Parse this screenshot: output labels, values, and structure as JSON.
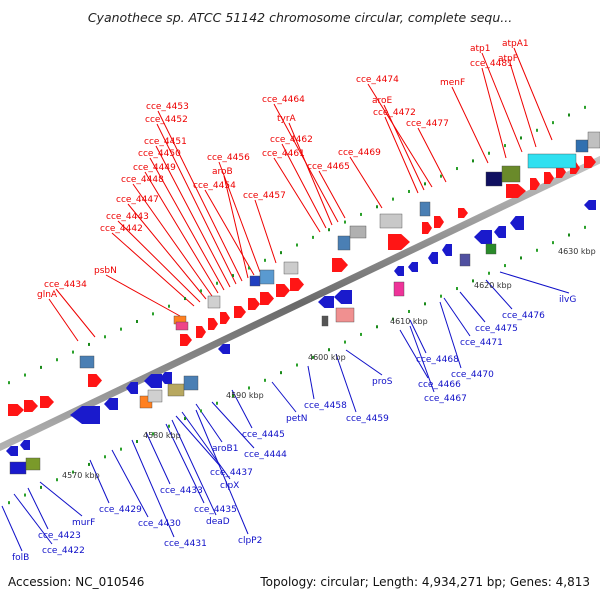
{
  "title": "Cyanothece sp. ATCC 51142 chromosome circular, complete sequ...",
  "footer": {
    "accession": "Accession: NC_010546",
    "stats": "Topology: circular; Length: 4,934,271 bp; Genes: 4,813"
  },
  "colors": {
    "forward_label": "#ee0000",
    "reverse_label": "#1010c8",
    "forward_gene": "#ff1515",
    "reverse_gene": "#1a1acc",
    "backbone": "#808080"
  },
  "scale_labels": [
    "4570 kbp",
    "4580 kbp",
    "4590 kbp",
    "4600 kbp",
    "4610 kbp",
    "4620 kbp",
    "4630 kbp"
  ],
  "forward_genes": [
    "glnA",
    "cce_4434",
    "psbN",
    "cce_4442",
    "cce_4443",
    "cce_4447",
    "cce_4448",
    "cce_4449",
    "cce_4450",
    "cce_4451",
    "cce_4452",
    "cce_4453",
    "aroB",
    "cce_4454",
    "cce_4456",
    "cce_4457",
    "cce_4461",
    "cce_4462",
    "tyrA",
    "cce_4464",
    "cce_4465",
    "cce_4469",
    "cce_4472",
    "aroE",
    "cce_4474",
    "cce_4477",
    "menF",
    "cce_4481",
    "atp1",
    "atpF",
    "atpA1"
  ],
  "reverse_genes": [
    "folB",
    "cce_4422",
    "cce_4423",
    "murF",
    "cce_4429",
    "cce_4430",
    "cce_4431",
    "cce_4433",
    "cce_4435",
    "deaD",
    "cce_4437",
    "clpX",
    "clpP2",
    "aroB1",
    "cce_4444",
    "cce_4445",
    "petN",
    "cce_4458",
    "cce_4459",
    "proS",
    "cce_4466",
    "cce_4467",
    "cce_4468",
    "cce_4470",
    "cce_4471",
    "cce_4475",
    "cce_4476",
    "ilvG"
  ]
}
